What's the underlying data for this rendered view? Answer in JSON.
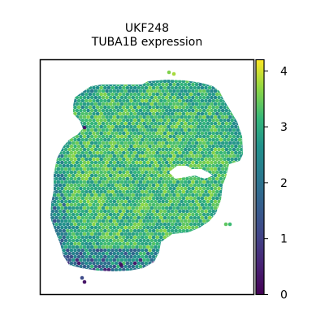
{
  "chart_data": {
    "type": "heatmap",
    "subtype": "spatial-spot-plot",
    "title_lines": [
      "UKF248",
      "TUBA1B expression"
    ],
    "colormap": "viridis",
    "colorbar": {
      "range": [
        0,
        4.2
      ],
      "ticks": [
        0,
        1,
        2,
        3,
        4
      ],
      "tick_labels": [
        "0",
        "1",
        "2",
        "3",
        "4"
      ]
    },
    "value_range": [
      0,
      4.2
    ],
    "typical_value": 3.2,
    "grid": false,
    "axis_ticks": false
  },
  "colors": {
    "background": "#ffffff",
    "frame": "#000000"
  }
}
